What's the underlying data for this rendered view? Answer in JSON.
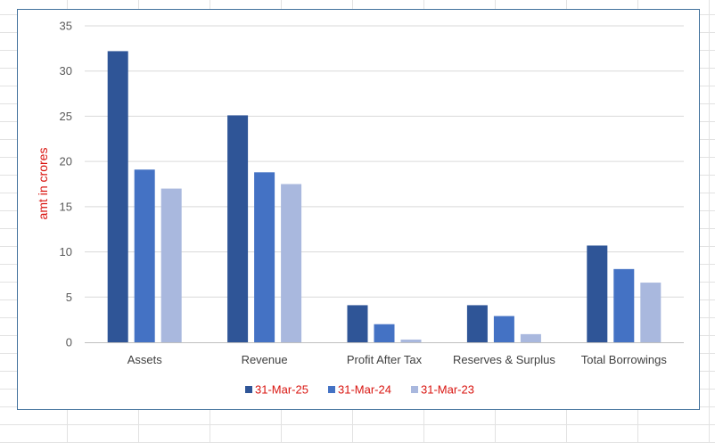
{
  "colors": {
    "sheet_gridline": "#e2e2e2",
    "chart_border": "#41719c",
    "chart_gridline": "#d9d9d9",
    "axis_line": "#bfbfbf",
    "label_red": "#d9140f",
    "tick_text": "#595959"
  },
  "chart_data": {
    "type": "bar",
    "title": "",
    "xlabel": "",
    "ylabel": "amt in crores",
    "ylim": [
      0,
      35
    ],
    "yticks": [
      0,
      5,
      10,
      15,
      20,
      25,
      30,
      35
    ],
    "grid": "horizontal",
    "legend_position": "bottom",
    "categories": [
      "Assets",
      "Revenue",
      "Profit After Tax",
      "Reserves & Surplus",
      "Total Borrowings"
    ],
    "series": [
      {
        "name": "31-Mar-25",
        "color": "#2f5597",
        "values": [
          32.2,
          25.1,
          4.1,
          4.1,
          10.7
        ]
      },
      {
        "name": "31-Mar-24",
        "color": "#4472c4",
        "values": [
          19.1,
          18.8,
          2.0,
          2.9,
          8.1
        ]
      },
      {
        "name": "31-Mar-23",
        "color": "#a9b8de",
        "values": [
          17.0,
          17.5,
          0.3,
          0.9,
          6.6
        ]
      }
    ]
  }
}
